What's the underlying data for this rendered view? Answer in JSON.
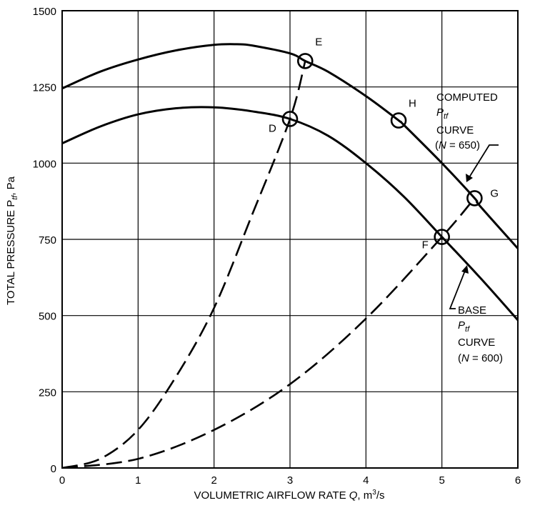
{
  "chart_data": {
    "type": "line",
    "xlabel": "VOLUMETRIC AIRFLOW RATE Q, m³/s",
    "ylabel": "TOTAL PRESSURE Ptf, Pa",
    "xlim": [
      0,
      6
    ],
    "ylim": [
      0,
      1500
    ],
    "grid": true,
    "x_ticks": [
      "0",
      "1",
      "2",
      "3",
      "4",
      "5",
      "6"
    ],
    "y_ticks": [
      "0",
      "250",
      "500",
      "750",
      "1000",
      "1250",
      "1500"
    ],
    "series": [
      {
        "name": "COMPUTED Ptf CURVE (N = 650)",
        "style": "solid",
        "x": [
          0,
          0.5,
          1,
          1.5,
          2,
          2.3,
          2.5,
          3,
          3.2,
          3.5,
          4,
          4.43,
          4.5,
          5,
          5.43,
          5.5,
          6
        ],
        "y": [
          1245,
          1300,
          1340,
          1370,
          1388,
          1390,
          1386,
          1360,
          1335,
          1300,
          1220,
          1140,
          1125,
          1000,
          885,
          860,
          720
        ]
      },
      {
        "name": "BASE Ptf CURVE (N = 600)",
        "style": "solid",
        "x": [
          0,
          0.5,
          1,
          1.5,
          2,
          2.5,
          3,
          3.5,
          4,
          4.5,
          5,
          5.5,
          6
        ],
        "y": [
          1065,
          1120,
          1160,
          1180,
          1183,
          1170,
          1145,
          1090,
          1000,
          890,
          758,
          625,
          485
        ]
      },
      {
        "style": "dashed",
        "x": [
          0,
          0.5,
          1,
          1.5,
          2,
          2.5,
          3,
          3.2
        ],
        "y": [
          0,
          30,
          125,
          300,
          525,
          830,
          1145,
          1335
        ]
      },
      {
        "style": "dashed",
        "x": [
          0,
          1,
          2,
          3,
          4,
          5,
          5.43
        ],
        "y": [
          0,
          30,
          125,
          275,
          490,
          758,
          885
        ]
      }
    ],
    "points": [
      {
        "label": "E",
        "x": 3.2,
        "y": 1335
      },
      {
        "label": "D",
        "x": 3.0,
        "y": 1145
      },
      {
        "label": "H",
        "x": 4.43,
        "y": 1140
      },
      {
        "label": "G",
        "x": 5.43,
        "y": 885
      },
      {
        "label": "F",
        "x": 5.0,
        "y": 758
      }
    ],
    "annotations": {
      "computed": [
        "COMPUTED",
        "Ptf",
        "CURVE",
        "(N = 650)"
      ],
      "base": [
        "BASE",
        "Ptf",
        "CURVE",
        "(N = 600)"
      ]
    }
  }
}
